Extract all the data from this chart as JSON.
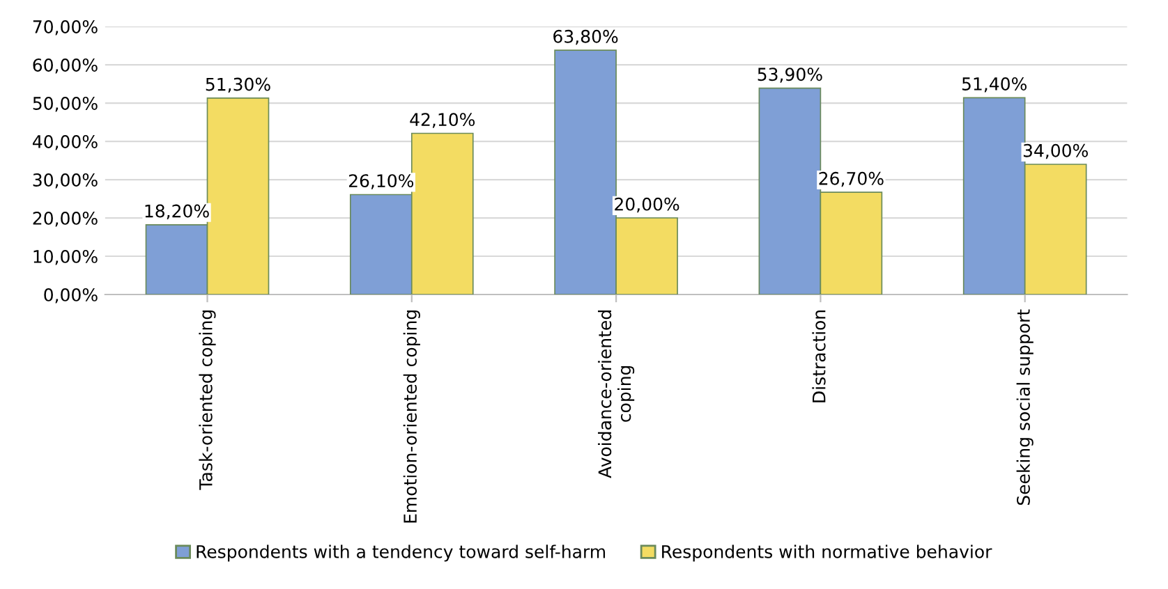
{
  "chart_data": {
    "type": "bar",
    "categories": [
      "Task-oriented coping",
      "Emotion-oriented coping",
      "Avoidance-oriented\ncoping",
      "Distraction",
      "Seeking social support"
    ],
    "series": [
      {
        "name": "Respondents with a tendency toward self-harm",
        "color": "#7f9fd6",
        "values": [
          18.2,
          26.1,
          63.8,
          53.9,
          51.4
        ],
        "value_labels": [
          "18,20%",
          "26,10%",
          "63,80%",
          "53,90%",
          "51,40%"
        ]
      },
      {
        "name": "Respondents with normative behavior",
        "color": "#f3dc62",
        "values": [
          51.3,
          42.1,
          20.0,
          26.7,
          34.0
        ],
        "value_labels": [
          "51,30%",
          "42,10%",
          "20,00%",
          "26,70%",
          "34,00%"
        ]
      }
    ],
    "ylim": [
      0,
      70
    ],
    "yticks": [
      {
        "value": 0,
        "label": "0,00%"
      },
      {
        "value": 10,
        "label": "10,00%"
      },
      {
        "value": 20,
        "label": "20,00%"
      },
      {
        "value": 30,
        "label": "30,00%"
      },
      {
        "value": 40,
        "label": "40,00%"
      },
      {
        "value": 50,
        "label": "50,00%"
      },
      {
        "value": 60,
        "label": "60,00%"
      },
      {
        "value": 70,
        "label": "70,00%"
      }
    ],
    "grid": "y",
    "legend": "bottom"
  }
}
